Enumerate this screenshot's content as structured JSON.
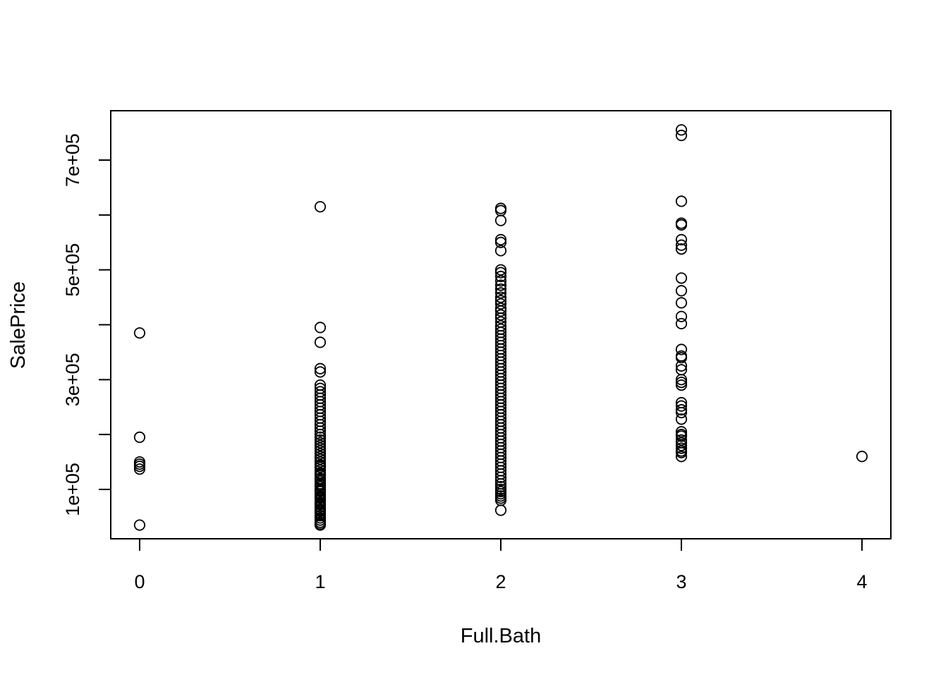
{
  "chart_data": {
    "type": "scatter",
    "title": "",
    "xlabel": "Full.Bath",
    "ylabel": "SalePrice",
    "xlim": [
      -0.16,
      4.16
    ],
    "ylim": [
      10000,
      790000
    ],
    "x_ticks": [
      {
        "value": 0,
        "label": "0"
      },
      {
        "value": 1,
        "label": "1"
      },
      {
        "value": 2,
        "label": "2"
      },
      {
        "value": 3,
        "label": "3"
      },
      {
        "value": 4,
        "label": "4"
      }
    ],
    "y_ticks": [
      {
        "value": 100000,
        "label": "1e+05"
      },
      {
        "value": 200000,
        "label": ""
      },
      {
        "value": 300000,
        "label": "3e+05"
      },
      {
        "value": 400000,
        "label": ""
      },
      {
        "value": 500000,
        "label": "5e+05"
      },
      {
        "value": 600000,
        "label": ""
      },
      {
        "value": 700000,
        "label": "7e+05"
      }
    ],
    "grid": false,
    "marker": "open-circle",
    "series": [
      {
        "x": [
          0,
          0,
          0,
          0,
          0,
          0,
          0
        ],
        "y": [
          385000,
          195000,
          150000,
          146000,
          142000,
          137000,
          35000
        ]
      },
      {
        "x": [
          1,
          1,
          1,
          1,
          1,
          1,
          1,
          1,
          1,
          1,
          1,
          1,
          1,
          1,
          1,
          1,
          1,
          1,
          1,
          1,
          1,
          1,
          1,
          1,
          1,
          1,
          1,
          1,
          1,
          1,
          1,
          1,
          1,
          1,
          1,
          1,
          1,
          1,
          1,
          1,
          1,
          1,
          1,
          1,
          1,
          1,
          1,
          1,
          1,
          1,
          1,
          1,
          1,
          1,
          1,
          1,
          1,
          1,
          1,
          1,
          1,
          1,
          1,
          1,
          1,
          1
        ],
        "y": [
          615000,
          395000,
          368000,
          320000,
          314000,
          290000,
          284000,
          278000,
          272000,
          266000,
          260000,
          254000,
          248000,
          242000,
          236000,
          230000,
          224000,
          218000,
          212000,
          206000,
          200000,
          195000,
          190000,
          185000,
          180000,
          175000,
          170000,
          165000,
          160000,
          155000,
          150000,
          145000,
          140000,
          135000,
          130000,
          125000,
          120000,
          115000,
          110000,
          105000,
          100000,
          96000,
          92000,
          88000,
          84000,
          80000,
          76000,
          72000,
          68000,
          64000,
          60000,
          56000,
          52000,
          48000,
          44000,
          40000,
          37000,
          35000,
          143000,
          128000,
          118000,
          108000,
          98000,
          86000,
          74000,
          62000
        ]
      },
      {
        "x": [
          2,
          2,
          2,
          2,
          2,
          2,
          2,
          2,
          2,
          2,
          2,
          2,
          2,
          2,
          2,
          2,
          2,
          2,
          2,
          2,
          2,
          2,
          2,
          2,
          2,
          2,
          2,
          2,
          2,
          2,
          2,
          2,
          2,
          2,
          2,
          2,
          2,
          2,
          2,
          2,
          2,
          2,
          2,
          2,
          2,
          2,
          2,
          2,
          2,
          2,
          2,
          2,
          2,
          2,
          2,
          2,
          2,
          2,
          2,
          2,
          2,
          2,
          2,
          2,
          2,
          2,
          2,
          2,
          2,
          2,
          2,
          2,
          2,
          2,
          2,
          2,
          2,
          2
        ],
        "y": [
          612000,
          608000,
          590000,
          555000,
          550000,
          535000,
          500000,
          495000,
          488000,
          480000,
          472000,
          465000,
          458000,
          450000,
          444000,
          438000,
          430000,
          425000,
          418000,
          412000,
          405000,
          398000,
          392000,
          386000,
          380000,
          374000,
          368000,
          362000,
          356000,
          350000,
          344000,
          338000,
          332000,
          326000,
          320000,
          314000,
          308000,
          302000,
          296000,
          290000,
          284000,
          278000,
          272000,
          266000,
          260000,
          254000,
          248000,
          242000,
          236000,
          230000,
          224000,
          218000,
          212000,
          206000,
          200000,
          194000,
          188000,
          182000,
          176000,
          170000,
          164000,
          158000,
          152000,
          146000,
          140000,
          134000,
          128000,
          122000,
          116000,
          110000,
          105000,
          100000,
          96000,
          92000,
          88000,
          84000,
          80000,
          62000
        ]
      },
      {
        "x": [
          3,
          3,
          3,
          3,
          3,
          3,
          3,
          3,
          3,
          3,
          3,
          3,
          3,
          3,
          3,
          3,
          3,
          3,
          3,
          3,
          3,
          3,
          3,
          3,
          3,
          3,
          3,
          3,
          3,
          3,
          3,
          3,
          3,
          3,
          3,
          3
        ],
        "y": [
          755000,
          745000,
          625000,
          585000,
          582000,
          555000,
          545000,
          538000,
          485000,
          462000,
          440000,
          415000,
          402000,
          355000,
          343000,
          340000,
          325000,
          318000,
          300000,
          295000,
          290000,
          258000,
          252000,
          245000,
          240000,
          228000,
          205000,
          200000,
          197000,
          190000,
          185000,
          180000,
          175000,
          170000,
          167000,
          160000
        ]
      },
      {
        "x": [
          4
        ],
        "y": [
          160000
        ]
      }
    ]
  }
}
